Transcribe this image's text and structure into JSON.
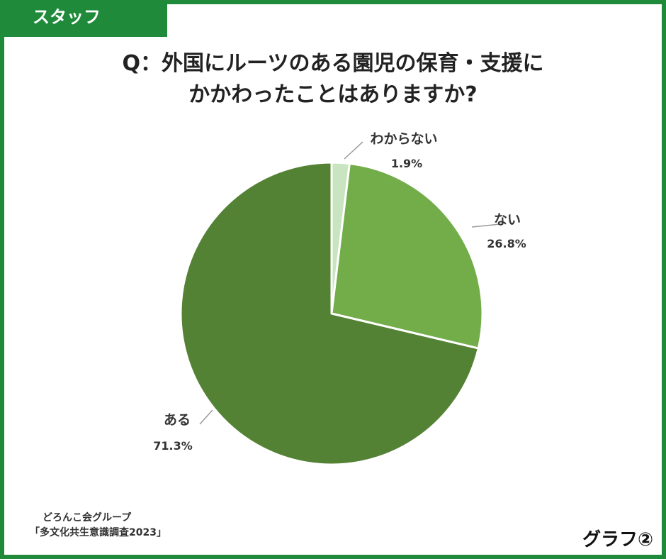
{
  "tag": "スタッフ",
  "title_line1": "Q：外国にルーツのある園児の保育・支援に",
  "title_line2": "かかわったことはありますか?",
  "source_line1": "どろんこ会グループ",
  "source_line2": "「多文化共生意識調査2023」",
  "graph_label": "グラフ②",
  "colors": {
    "frame": "#1e8a3a",
    "leader": "#999999"
  },
  "chart_data": {
    "type": "pie",
    "slices": [
      {
        "label": "わからない",
        "value": 1.9,
        "value_label": "1.9%",
        "color": "#c8e4c0"
      },
      {
        "label": "ない",
        "value": 26.8,
        "value_label": "26.8%",
        "color": "#72ad4a"
      },
      {
        "label": "ある",
        "value": 71.3,
        "value_label": "71.3%",
        "color": "#548235"
      }
    ],
    "start": "12 o'clock",
    "direction": "clockwise"
  }
}
